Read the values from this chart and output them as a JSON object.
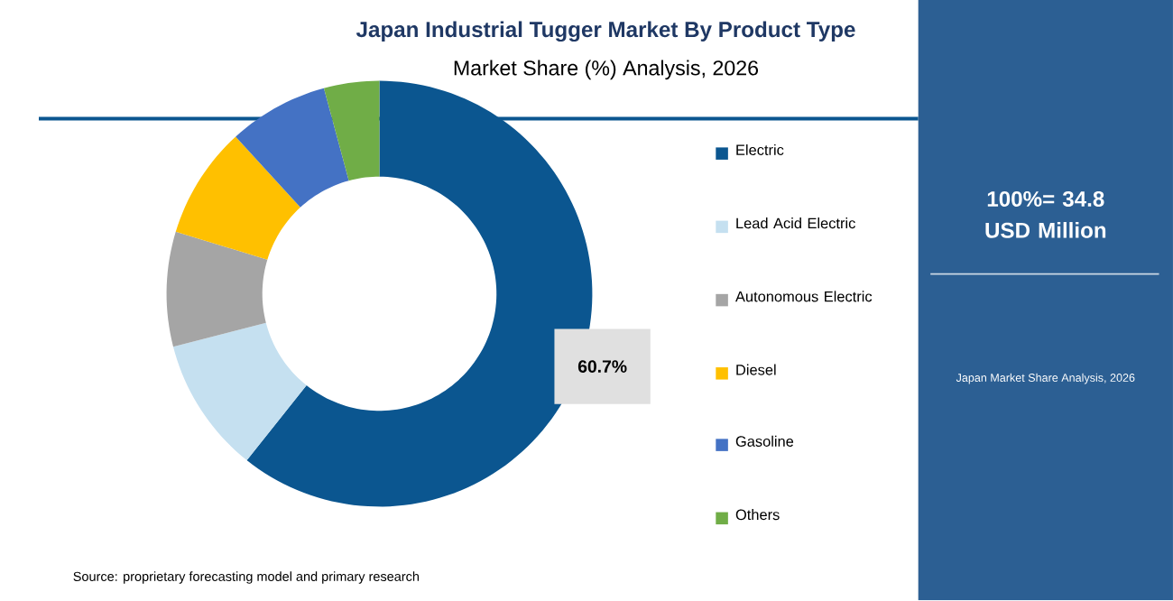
{
  "chart_data": {
    "type": "donut",
    "title": "Japan Industrial Tugger Market By Product Type",
    "subtitle": "Market Share (%) Analysis, 2026",
    "categories": [
      "Electric",
      "Lead Acid Electric",
      "Autonomous Electric",
      "Diesel",
      "Gasoline",
      "Others"
    ],
    "values": [
      60.7,
      10.3,
      8.7,
      8.5,
      7.6,
      4.2
    ],
    "colors": [
      "#0b5690",
      "#c5e0f0",
      "#a5a5a5",
      "#ffc000",
      "#4472c4",
      "#70ad47"
    ],
    "value_labels": [
      "60.7%",
      null,
      null,
      null,
      null,
      null
    ],
    "legend": "right",
    "annotations": [
      "100%= 34.8 USD Million",
      "Japan Market Share Analysis, 2026",
      "Source: proprietary forecasting model and primary research"
    ]
  }
}
